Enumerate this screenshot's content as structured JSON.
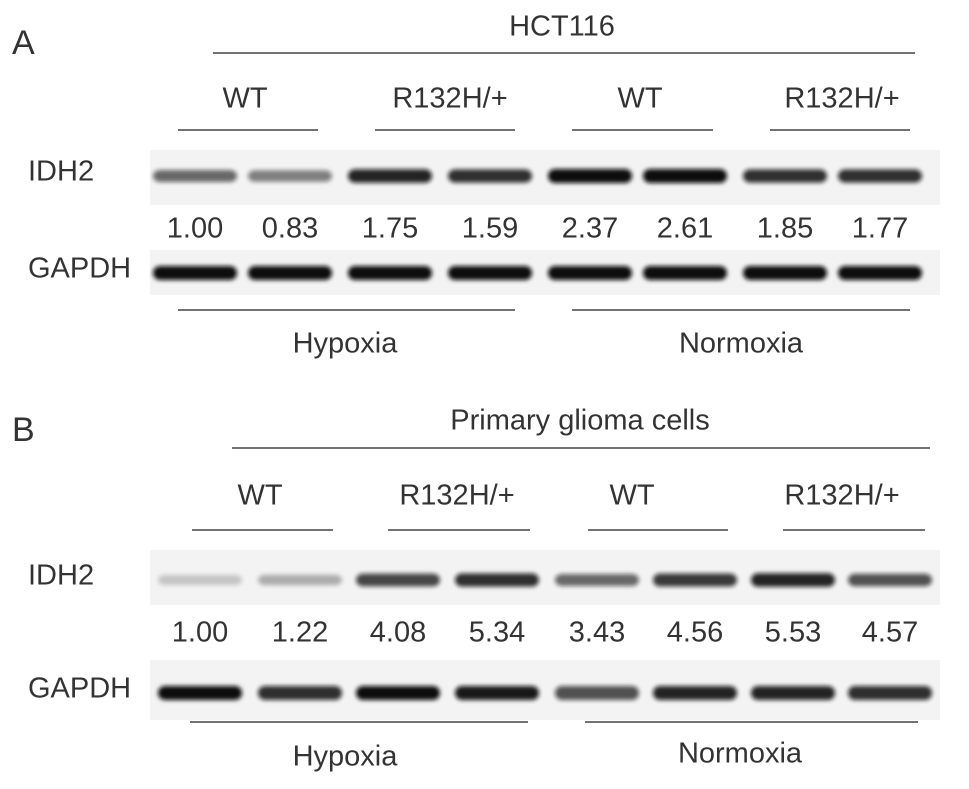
{
  "panels": [
    {
      "label": "A",
      "title": "HCT116",
      "genotypes": [
        "WT",
        "R132H/+",
        "WT",
        "R132H/+"
      ],
      "rows": [
        "IDH2",
        "GAPDH"
      ],
      "values": [
        "1.00",
        "0.83",
        "1.75",
        "1.59",
        "2.37",
        "2.61",
        "1.85",
        "1.77"
      ],
      "conditions": [
        "Hypoxia",
        "Normoxia"
      ]
    },
    {
      "label": "B",
      "title": "Primary glioma cells",
      "genotypes": [
        "WT",
        "R132H/+",
        "WT",
        "R132H/+"
      ],
      "rows": [
        "IDH2",
        "GAPDH"
      ],
      "values": [
        "1.00",
        "1.22",
        "4.08",
        "5.34",
        "3.43",
        "4.56",
        "5.53",
        "4.57"
      ],
      "conditions": [
        "Hypoxia",
        "Normoxia"
      ]
    }
  ]
}
